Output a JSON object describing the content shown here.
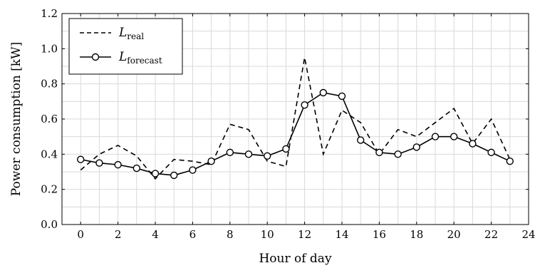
{
  "chart_data": {
    "type": "line",
    "xlabel": "Hour of day",
    "ylabel": "Power consumption [kW]",
    "xlim": [
      -1,
      24
    ],
    "ylim": [
      0,
      1.2
    ],
    "xticks": [
      0,
      2,
      4,
      6,
      8,
      10,
      12,
      14,
      16,
      18,
      20,
      22,
      24
    ],
    "yticks": [
      "0.0",
      "0.2",
      "0.4",
      "0.6",
      "0.8",
      "1.0",
      "1.2"
    ],
    "grid": true,
    "legend_position": "top-left",
    "x": [
      0,
      1,
      2,
      3,
      4,
      5,
      6,
      7,
      8,
      9,
      10,
      11,
      12,
      13,
      14,
      15,
      16,
      17,
      18,
      19,
      20,
      21,
      22,
      23
    ],
    "series": [
      {
        "name_main": "L",
        "name_sub": "real",
        "style": "dashed",
        "values": [
          0.31,
          0.4,
          0.45,
          0.39,
          0.26,
          0.37,
          0.36,
          0.34,
          0.57,
          0.54,
          0.36,
          0.33,
          0.95,
          0.4,
          0.65,
          0.58,
          0.4,
          0.54,
          0.5,
          0.58,
          0.66,
          0.46,
          0.6,
          0.37
        ]
      },
      {
        "name_main": "L",
        "name_sub": "forecast",
        "style": "solid-marker",
        "values": [
          0.37,
          0.35,
          0.34,
          0.32,
          0.29,
          0.28,
          0.31,
          0.36,
          0.41,
          0.4,
          0.39,
          0.43,
          0.68,
          0.75,
          0.73,
          0.48,
          0.41,
          0.4,
          0.44,
          0.5,
          0.5,
          0.46,
          0.41,
          0.36
        ]
      }
    ]
  }
}
